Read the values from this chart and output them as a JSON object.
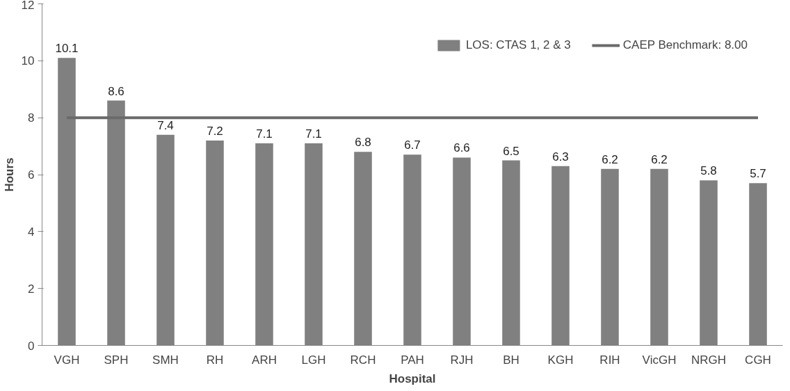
{
  "chart_data": {
    "type": "bar",
    "xlabel": "Hospital",
    "ylabel": "Hours",
    "categories": [
      "VGH",
      "SPH",
      "SMH",
      "RH",
      "ARH",
      "LGH",
      "RCH",
      "PAH",
      "RJH",
      "BH",
      "KGH",
      "RIH",
      "VicGH",
      "NRGH",
      "CGH"
    ],
    "series": [
      {
        "name": "LOS: CTAS 1, 2 & 3",
        "color": "#808080",
        "values": [
          10.1,
          8.6,
          7.4,
          7.2,
          7.1,
          7.1,
          6.8,
          6.7,
          6.6,
          6.5,
          6.3,
          6.2,
          6.2,
          5.8,
          5.7
        ],
        "value_labels": [
          "10.1",
          "8.6",
          "7.4",
          "7.2",
          "7.1",
          "7.1",
          "6.8",
          "6.7",
          "6.6",
          "6.5",
          "6.3",
          "6.2",
          "6.2",
          "5.8",
          "5.7"
        ]
      },
      {
        "name": "CAEP Benchmark: 8.00",
        "type": "line",
        "color": "#6a6a6a",
        "values": [
          8,
          8,
          8,
          8,
          8,
          8,
          8,
          8,
          8,
          8,
          8,
          8,
          8,
          8,
          8
        ]
      }
    ],
    "ylim": [
      0,
      12
    ],
    "yticks": [
      0,
      2,
      4,
      6,
      8,
      10,
      12
    ],
    "grid": false,
    "legend": "top right"
  }
}
